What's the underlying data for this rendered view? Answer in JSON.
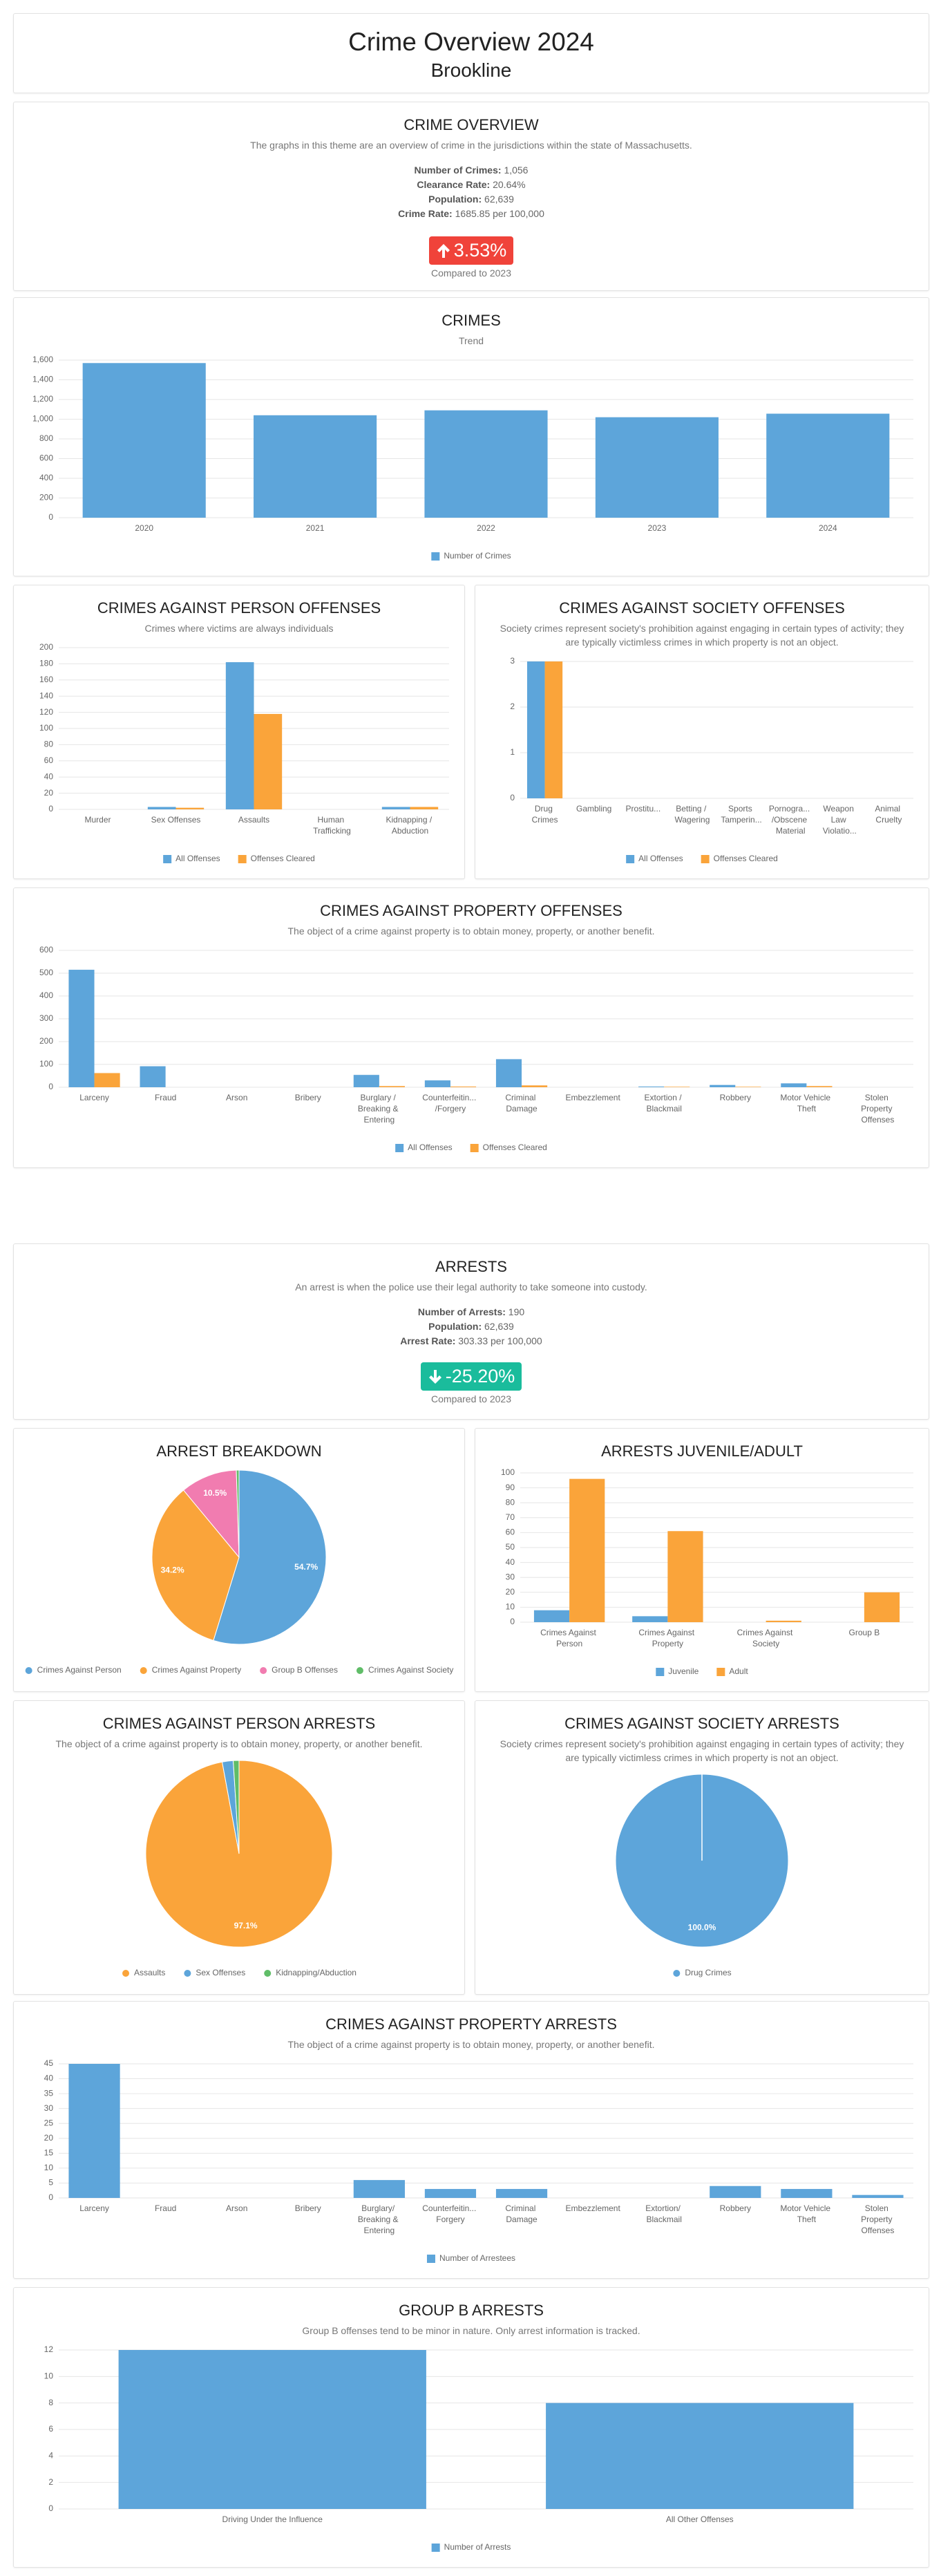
{
  "header": {
    "title": "Crime Overview 2024",
    "subtitle": "Brookline"
  },
  "overview": {
    "title": "CRIME OVERVIEW",
    "description": "The graphs in this theme are an overview of crime in the jurisdictions within the state of Massachusetts.",
    "stats": [
      {
        "label": "Number of Crimes:",
        "value": "1,056"
      },
      {
        "label": "Clearance Rate:",
        "value": "20.64%"
      },
      {
        "label": "Population:",
        "value": "62,639"
      },
      {
        "label": "Crime Rate:",
        "value": "1685.85 per 100,000"
      }
    ],
    "change": "3.53%",
    "compared": "Compared to 2023"
  },
  "arrests_overview": {
    "title": "ARRESTS",
    "description": "An arrest is when the police use their legal authority to take someone into custody.",
    "stats": [
      {
        "label": "Number of Arrests:",
        "value": "190"
      },
      {
        "label": "Population:",
        "value": "62,639"
      },
      {
        "label": "Arrest Rate:",
        "value": "303.33 per 100,000"
      }
    ],
    "change": "-25.20%",
    "compared": "Compared to 2023"
  },
  "chart_data": [
    {
      "type": "bar",
      "title": "CRIMES",
      "subtitle": "Trend",
      "categories": [
        "2020",
        "2021",
        "2022",
        "2023",
        "2024"
      ],
      "series": [
        {
          "name": "Number of Crimes",
          "color": "#5DA5DA",
          "values": [
            1570,
            1040,
            1090,
            1020,
            1056
          ]
        }
      ],
      "ylim": [
        0,
        1600
      ],
      "yticks": [
        0,
        200,
        400,
        600,
        800,
        {
          "value": 1000,
          "label": "1,000"
        },
        {
          "value": 1200,
          "label": "1,200"
        },
        {
          "value": 1400,
          "label": "1,400"
        },
        {
          "value": 1600,
          "label": "1,600"
        }
      ],
      "grid": true
    },
    {
      "type": "bar",
      "title": "CRIMES AGAINST PERSON OFFENSES",
      "subtitle": "Crimes where victims are always individuals",
      "categories": [
        "Murder",
        "Sex Offenses",
        "Assaults",
        "Human Trafficking",
        "Kidnapping / Abduction"
      ],
      "series": [
        {
          "name": "All Offenses",
          "color": "#5DA5DA",
          "values": [
            0,
            3,
            182,
            0,
            3
          ]
        },
        {
          "name": "Offenses Cleared",
          "color": "#FAA43A",
          "values": [
            0,
            2,
            118,
            0,
            3
          ]
        }
      ],
      "ylim": [
        0,
        200
      ],
      "yticks": [
        0,
        20,
        40,
        60,
        80,
        100,
        120,
        140,
        160,
        180,
        200
      ],
      "grid": true
    },
    {
      "type": "bar",
      "title": "CRIMES AGAINST SOCIETY OFFENSES",
      "subtitle": "Society crimes represent society's prohibition against engaging in certain types of activity; they are typically victimless crimes in which property is not an object.",
      "categories": [
        "Drug Crimes",
        "Gambling",
        "Prostitu...",
        "Betting / Wagering",
        "Sports Tamperin...",
        "Pornogra... /Obscene Material",
        "Weapon Law Violatio...",
        "Animal Cruelty"
      ],
      "series": [
        {
          "name": "All Offenses",
          "color": "#5DA5DA",
          "values": [
            3,
            0,
            0,
            0,
            0,
            0,
            0,
            0
          ]
        },
        {
          "name": "Offenses Cleared",
          "color": "#FAA43A",
          "values": [
            3,
            0,
            0,
            0,
            0,
            0,
            0,
            0
          ]
        }
      ],
      "ylim": [
        0,
        3
      ],
      "yticks": [
        0,
        1,
        2,
        3
      ],
      "grid": true
    },
    {
      "type": "bar",
      "title": "CRIMES AGAINST PROPERTY OFFENSES",
      "subtitle": "The object of a crime against property is to obtain money, property, or another benefit.",
      "categories": [
        "Larceny",
        "Fraud",
        "Arson",
        "Bribery",
        "Burglary / Breaking & Entering",
        "Counterfeitin... /Forgery",
        "Criminal Damage",
        "Embezzlement",
        "Extortion / Blackmail",
        "Robbery",
        "Motor Vehicle Theft",
        "Stolen Property Offenses"
      ],
      "series": [
        {
          "name": "All Offenses",
          "color": "#5DA5DA",
          "values": [
            515,
            92,
            0,
            0,
            54,
            30,
            123,
            0,
            3,
            10,
            17,
            0
          ]
        },
        {
          "name": "Offenses Cleared",
          "color": "#FAA43A",
          "values": [
            62,
            0,
            0,
            0,
            5,
            3,
            8,
            0,
            2,
            2,
            5,
            0
          ]
        }
      ],
      "ylim": [
        0,
        600
      ],
      "yticks": [
        0,
        100,
        200,
        300,
        400,
        500,
        600
      ],
      "grid": true
    },
    {
      "type": "pie",
      "title": "ARREST BREAKDOWN",
      "categories": [
        "Crimes Against Person",
        "Crimes Against Property",
        "Group B Offenses",
        "Crimes Against Society"
      ],
      "values": [
        54.7,
        34.2,
        10.5,
        0.5
      ],
      "value_labels": [
        "54.7%",
        "34.2%",
        "10.5%",
        null
      ],
      "colors": [
        "#5DA5DA",
        "#FAA43A",
        "#F17CB0",
        "#60BD68"
      ]
    },
    {
      "type": "bar",
      "title": "ARRESTS JUVENILE/ADULT",
      "categories": [
        "Crimes Against Person",
        "Crimes Against Property",
        "Crimes Against Society",
        "Group B"
      ],
      "series": [
        {
          "name": "Juvenile",
          "color": "#5DA5DA",
          "values": [
            8,
            4,
            0,
            0
          ]
        },
        {
          "name": "Adult",
          "color": "#FAA43A",
          "values": [
            96,
            61,
            1,
            20
          ]
        }
      ],
      "ylim": [
        0,
        100
      ],
      "yticks": [
        0,
        10,
        20,
        30,
        40,
        50,
        60,
        70,
        80,
        90,
        100
      ],
      "grid": true
    },
    {
      "type": "pie",
      "title": "CRIMES AGAINST PERSON ARRESTS",
      "subtitle": "The object of a crime against property is to obtain money, property, or another benefit.",
      "categories": [
        "Assaults",
        "Sex Offenses",
        "Kidnapping/Abduction"
      ],
      "values": [
        97.1,
        1.9,
        1.0
      ],
      "value_labels": [
        "97.1%",
        null,
        null
      ],
      "colors": [
        "#FAA43A",
        "#5DA5DA",
        "#60BD68"
      ]
    },
    {
      "type": "pie",
      "title": "CRIMES AGAINST SOCIETY ARRESTS",
      "subtitle": "Society crimes represent society's prohibition against engaging in certain types of activity; they are typically victimless crimes in which property is not an object.",
      "categories": [
        "Drug Crimes"
      ],
      "values": [
        100
      ],
      "value_labels": [
        "100.0%"
      ],
      "colors": [
        "#5DA5DA"
      ]
    },
    {
      "type": "bar",
      "title": "CRIMES AGAINST PROPERTY ARRESTS",
      "subtitle": "The object of a crime against property is to obtain money, property, or another benefit.",
      "categories": [
        "Larceny",
        "Fraud",
        "Arson",
        "Bribery",
        "Burglary/ Breaking & Entering",
        "Counterfeitin... Forgery",
        "Criminal Damage",
        "Embezzlement",
        "Extortion/ Blackmail",
        "Robbery",
        "Motor Vehicle Theft",
        "Stolen Property Offenses"
      ],
      "series": [
        {
          "name": "Number of Arrestees",
          "color": "#5DA5DA",
          "values": [
            45,
            0,
            0,
            0,
            6,
            3,
            3,
            0,
            0,
            4,
            3,
            1
          ]
        }
      ],
      "ylim": [
        0,
        45
      ],
      "yticks": [
        0,
        5,
        10,
        15,
        20,
        25,
        30,
        35,
        40,
        45
      ],
      "grid": true
    },
    {
      "type": "bar",
      "title": "GROUP B ARRESTS",
      "subtitle": "Group B offenses tend to be minor in nature. Only arrest information is tracked.",
      "categories": [
        "Driving Under the Influence",
        "All Other Offenses"
      ],
      "series": [
        {
          "name": "Number of Arrests",
          "color": "#5DA5DA",
          "values": [
            12,
            8
          ]
        }
      ],
      "ylim": [
        0,
        12
      ],
      "yticks": [
        0,
        2,
        4,
        6,
        8,
        10,
        12
      ],
      "grid": true
    }
  ]
}
